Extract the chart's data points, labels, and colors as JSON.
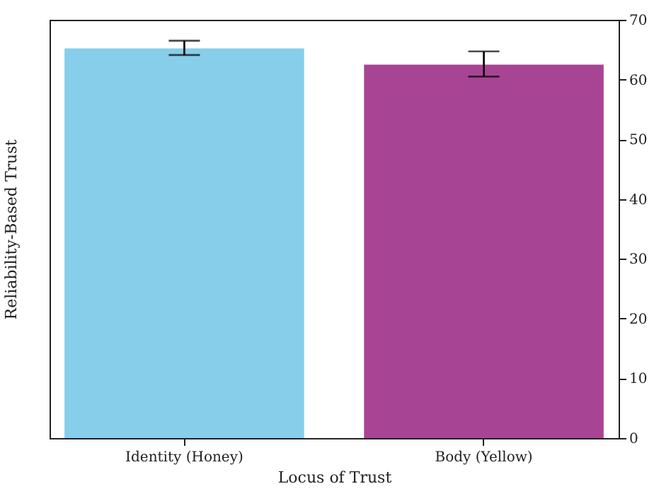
{
  "chart_data": {
    "type": "bar",
    "xlabel": "Locus of Trust",
    "ylabel": "Reliability-Based Trust",
    "categories": [
      "Identity (Honey)",
      "Body (Yellow)"
    ],
    "values": [
      65.2,
      62.5
    ],
    "colors": [
      "#87ceeb",
      "#a84494"
    ],
    "errors": [
      [
        64.1,
        66.5
      ],
      [
        60.5,
        64.7
      ]
    ],
    "ylim": [
      0,
      70
    ],
    "yticks": [
      0,
      10,
      20,
      30,
      40,
      50,
      60,
      70
    ],
    "grid": false
  }
}
